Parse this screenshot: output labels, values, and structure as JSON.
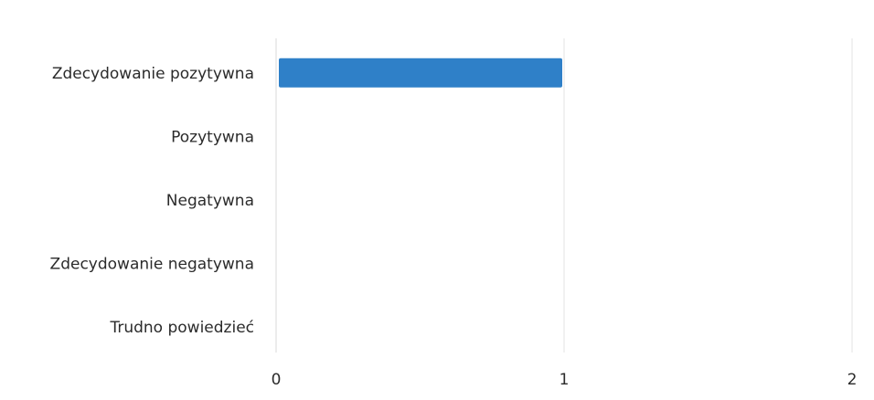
{
  "chart_data": {
    "type": "bar",
    "orientation": "horizontal",
    "categories": [
      "Zdecydowanie pozytywna",
      "Pozytywna",
      "Negatywna",
      "Zdecydowanie negatywna",
      "Trudno powiedzieć"
    ],
    "values": [
      1,
      0,
      0,
      0,
      0
    ],
    "xlim": [
      0,
      2
    ],
    "x_ticks": [
      "0",
      "1",
      "2"
    ],
    "grid": "vertical",
    "legend": "none",
    "bar_color": "#2f80c8",
    "title": "",
    "xlabel": "",
    "ylabel": ""
  }
}
